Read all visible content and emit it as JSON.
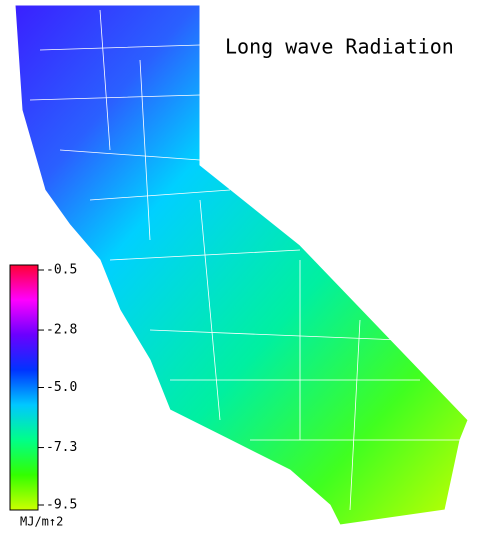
{
  "title": "Long wave Radiation",
  "colorbar": {
    "lim": [
      -9.5,
      -0.5
    ],
    "ticks": [
      -0.5,
      -2.8,
      {
        "value": -5,
        "label": "-5.0"
      },
      -7.3,
      -9.5
    ],
    "colors": [
      "#ff0033",
      "#ff00ff",
      "#6a00ff",
      "#0033ff",
      "#00c8ff",
      "#00ff88",
      "#33ff00",
      "#ccff00"
    ],
    "label": "MJ/m↑2"
  }
}
